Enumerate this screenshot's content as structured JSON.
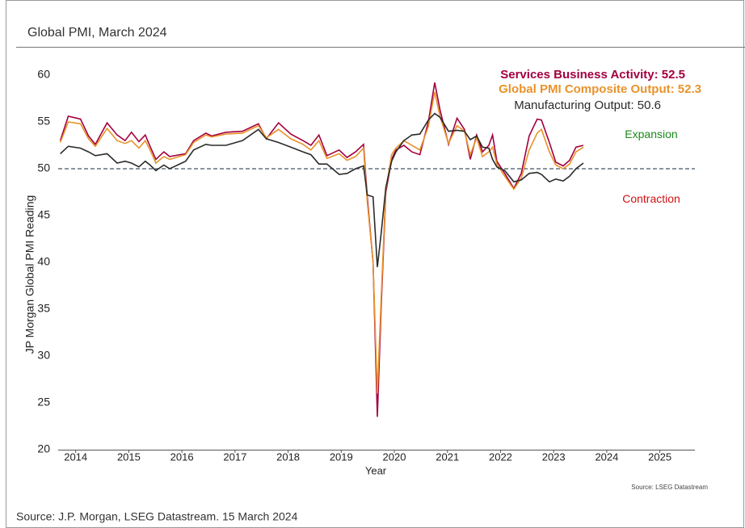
{
  "chart_data": {
    "type": "line",
    "title": "Global PMI, March 2024",
    "xlabel": "Year",
    "ylabel": "JP Morgan Global PMI Reading",
    "x": [
      2013.71,
      2013.86,
      2014.09,
      2014.24,
      2014.37,
      2014.59,
      2014.78,
      2014.93,
      2015.05,
      2015.19,
      2015.31,
      2015.4,
      2015.51,
      2015.66,
      2015.77,
      2016.07,
      2016.22,
      2016.45,
      2016.56,
      2016.83,
      2017.14,
      2017.44,
      2017.59,
      2017.82,
      2018.05,
      2018.28,
      2018.43,
      2018.58,
      2018.73,
      2018.96,
      2019.11,
      2019.27,
      2019.42,
      2019.49,
      2019.6,
      2019.68,
      2019.75,
      2019.84,
      2019.95,
      2020.03,
      2020.18,
      2020.33,
      2020.48,
      2020.64,
      2020.76,
      2020.86,
      2021.02,
      2021.18,
      2021.32,
      2021.43,
      2021.55,
      2021.66,
      2021.78,
      2021.85,
      2021.93,
      2022.08,
      2022.25,
      2022.39,
      2022.54,
      2022.69,
      2022.77,
      2022.92,
      2023.04,
      2023.18,
      2023.3,
      2023.42,
      2023.56
    ],
    "series": [
      {
        "name": "Services Business Activity: 52.5",
        "color": "#a3003f",
        "values": [
          53,
          55.6,
          55.3,
          53.5,
          52.6,
          54.9,
          53.6,
          53.0,
          53.9,
          52.9,
          53.6,
          52.4,
          51.0,
          51.8,
          51.3,
          51.6,
          53.0,
          53.8,
          53.5,
          53.9,
          54.0,
          54.8,
          53.2,
          54.9,
          53.7,
          53.0,
          52.5,
          53.6,
          51.4,
          52.0,
          51.2,
          51.8,
          52.6,
          47.0,
          40,
          23.5,
          35,
          47.5,
          51.0,
          52.0,
          52.5,
          51.8,
          51.5,
          55.0,
          59.2,
          56.3,
          52.6,
          55.4,
          54.2,
          51.0,
          53.6,
          51.8,
          52.5,
          53.6,
          50.8,
          49.5,
          47.9,
          49.5,
          53.5,
          55.3,
          55.2,
          52.8,
          50.7,
          50.3,
          50.9,
          52.3,
          52.5
        ]
      },
      {
        "name": "Global PMI Composite Output: 52.3",
        "color": "#e8932b",
        "values": [
          52.8,
          55.0,
          54.8,
          53.2,
          52.4,
          54.3,
          53.0,
          52.7,
          53.0,
          52.2,
          53.0,
          52.0,
          50.6,
          51.3,
          51.0,
          51.5,
          52.8,
          53.6,
          53.4,
          53.7,
          53.8,
          54.6,
          53.3,
          54.2,
          53.2,
          52.6,
          52.0,
          53.0,
          51.1,
          51.6,
          50.9,
          51.3,
          52.2,
          46.5,
          40,
          26,
          36,
          47.8,
          51.5,
          52.2,
          53.0,
          52.5,
          52.0,
          54.5,
          58.2,
          55.6,
          52.7,
          54.6,
          54.0,
          51.5,
          53.3,
          51.3,
          51.8,
          52.3,
          50.5,
          49.2,
          47.8,
          49.0,
          52.0,
          53.8,
          54.2,
          51.8,
          50.4,
          50.0,
          50.5,
          51.8,
          52.3
        ]
      },
      {
        "name": "Manufacturing Output: 50.6",
        "color": "#2b2b2b",
        "values": [
          51.6,
          52.4,
          52.2,
          51.8,
          51.4,
          51.6,
          50.6,
          50.8,
          50.6,
          50.2,
          50.8,
          50.4,
          49.8,
          50.4,
          50.0,
          50.8,
          52.0,
          52.6,
          52.5,
          52.5,
          53.0,
          54.2,
          53.2,
          52.8,
          52.3,
          51.8,
          51.5,
          50.5,
          50.5,
          49.4,
          49.5,
          50.0,
          50.3,
          47.2,
          47.0,
          39.5,
          43,
          48.0,
          50.8,
          51.8,
          53.0,
          53.6,
          53.7,
          55.2,
          55.9,
          55.5,
          54.0,
          54.1,
          54.0,
          53.1,
          53.5,
          52.3,
          52.2,
          51.0,
          50.2,
          49.8,
          48.6,
          48.8,
          49.5,
          49.6,
          49.4,
          48.6,
          48.9,
          48.7,
          49.2,
          50.0,
          50.6
        ]
      }
    ],
    "xlim": [
      2013.67,
      2025.66
    ],
    "xticks": [
      2014,
      2015,
      2016,
      2017,
      2018,
      2019,
      2020,
      2021,
      2022,
      2023,
      2024,
      2025
    ],
    "ylim": [
      20,
      60
    ],
    "yticks": [
      20,
      25,
      30,
      35,
      40,
      45,
      50,
      55,
      60
    ],
    "reference_line": 50,
    "annotations": [
      {
        "text": "Expansion",
        "color": "#1a8a1a",
        "value": 53.6
      },
      {
        "text": "Contraction",
        "color": "#d01010",
        "value": 46.7
      }
    ],
    "source_note": "Source: LSEG Datastream"
  },
  "footer": "Source: J.P. Morgan, LSEG Datastream. 15 March 2024"
}
